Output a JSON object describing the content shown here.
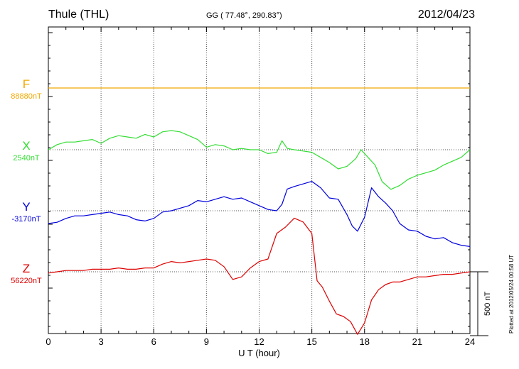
{
  "header": {
    "station": "Thule (THL)",
    "coords": "GG ( 77.48°, 290.83°)",
    "date": "2012/04/23"
  },
  "plotted_note": "Plotted at 2012/05/24 00:58 UT",
  "scale_bar": {
    "value_nT": 500,
    "label": "500 nT"
  },
  "chart_data": {
    "type": "line",
    "xlabel": "U T (hour)",
    "xlim": [
      0,
      24
    ],
    "xticks": [
      "0",
      "3",
      "6",
      "9",
      "12",
      "15",
      "18",
      "21",
      "24"
    ],
    "grid": true,
    "series": [
      {
        "name": "F",
        "baseline_label": "88880nT",
        "color": "#f0a800",
        "x": [
          0,
          24
        ],
        "y_nT": [
          0,
          0
        ]
      },
      {
        "name": "X",
        "baseline_label": "2540nT",
        "color": "#33dd33",
        "x": [
          0,
          0.5,
          1,
          1.5,
          2,
          2.5,
          3,
          3.5,
          4,
          4.5,
          5,
          5.5,
          6,
          6.5,
          7,
          7.5,
          8,
          8.5,
          9,
          9.5,
          10,
          10.5,
          11,
          11.5,
          12,
          12.5,
          13,
          13.3,
          13.6,
          14,
          14.5,
          15,
          15.5,
          16,
          16.5,
          17,
          17.5,
          17.8,
          18.2,
          18.6,
          19,
          19.5,
          20,
          20.5,
          21,
          21.5,
          22,
          22.5,
          23,
          23.5,
          24
        ],
        "y_nT": [
          0,
          40,
          60,
          60,
          70,
          80,
          50,
          90,
          110,
          100,
          90,
          120,
          100,
          140,
          150,
          140,
          110,
          80,
          20,
          40,
          30,
          0,
          10,
          0,
          0,
          -30,
          -20,
          70,
          10,
          0,
          -10,
          -20,
          -60,
          -100,
          -150,
          -130,
          -70,
          0,
          -60,
          -120,
          -250,
          -310,
          -280,
          -230,
          -200,
          -180,
          -160,
          -120,
          -90,
          -60,
          0
        ]
      },
      {
        "name": "Y",
        "baseline_label": "-3170nT",
        "color": "#0000dd",
        "x": [
          0,
          0.5,
          1,
          1.5,
          2,
          2.5,
          3,
          3.5,
          4,
          4.5,
          5,
          5.5,
          6,
          6.5,
          7,
          7.5,
          8,
          8.5,
          9,
          9.5,
          10,
          10.5,
          11,
          11.5,
          12,
          12.5,
          13,
          13.3,
          13.6,
          14,
          14.5,
          15,
          15.5,
          16,
          16.5,
          17,
          17.3,
          17.6,
          18,
          18.4,
          18.8,
          19.2,
          19.6,
          20,
          20.5,
          21,
          21.5,
          22,
          22.5,
          23,
          23.5,
          24
        ],
        "y_nT": [
          -100,
          -90,
          -60,
          -40,
          -40,
          -30,
          -20,
          -10,
          -30,
          -40,
          -70,
          -80,
          -60,
          -10,
          0,
          20,
          40,
          80,
          70,
          90,
          110,
          90,
          100,
          70,
          40,
          10,
          0,
          50,
          170,
          190,
          210,
          230,
          180,
          100,
          90,
          -30,
          -120,
          -160,
          -50,
          180,
          110,
          60,
          0,
          -100,
          -150,
          -160,
          -200,
          -220,
          -210,
          -250,
          -270,
          -280
        ]
      },
      {
        "name": "Z",
        "baseline_label": "56220nT",
        "color": "#dd0000",
        "x": [
          0,
          0.5,
          1,
          1.5,
          2,
          2.5,
          3,
          3.5,
          4,
          4.5,
          5,
          5.5,
          6,
          6.5,
          7,
          7.5,
          8,
          8.5,
          9,
          9.5,
          10,
          10.5,
          11,
          11.5,
          12,
          12.5,
          13,
          13.5,
          14,
          14.5,
          15,
          15.3,
          15.6,
          16,
          16.4,
          16.8,
          17.2,
          17.6,
          18,
          18.4,
          18.8,
          19.2,
          19.6,
          20,
          20.5,
          21,
          21.5,
          22,
          22.5,
          23,
          23.5,
          24
        ],
        "y_nT": [
          -10,
          0,
          10,
          10,
          10,
          20,
          20,
          20,
          30,
          20,
          20,
          30,
          30,
          60,
          80,
          70,
          80,
          90,
          100,
          90,
          40,
          -60,
          -40,
          30,
          80,
          100,
          300,
          350,
          420,
          390,
          300,
          -70,
          -120,
          -230,
          -330,
          -350,
          -390,
          -490,
          -400,
          -220,
          -140,
          -100,
          -80,
          -80,
          -60,
          -40,
          -40,
          -30,
          -20,
          -20,
          -10,
          0
        ]
      }
    ]
  }
}
